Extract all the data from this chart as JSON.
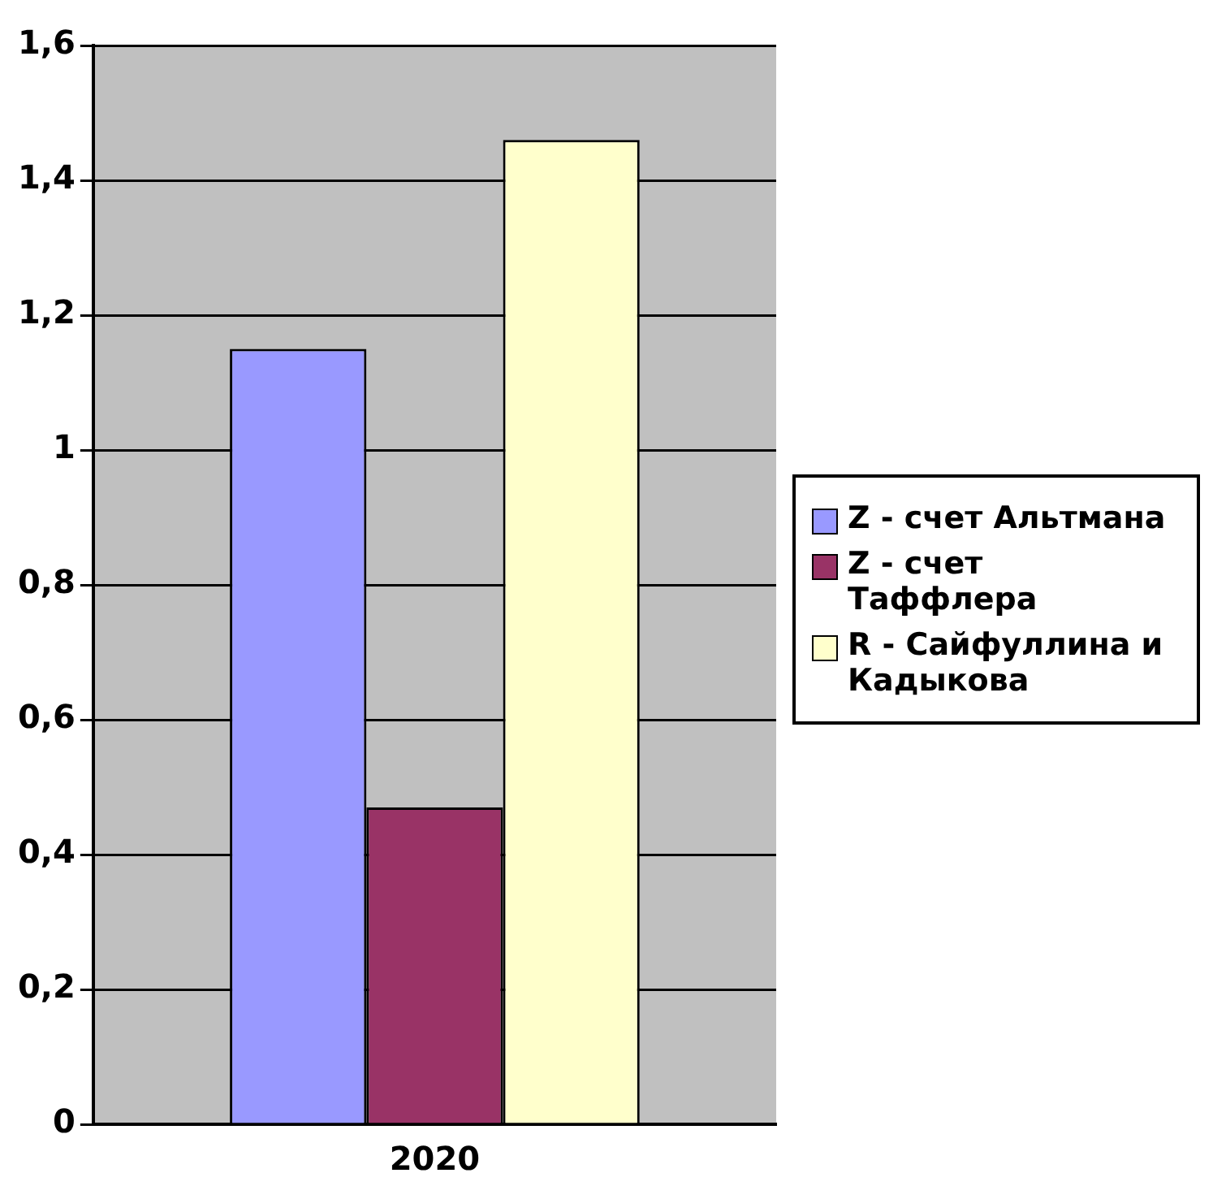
{
  "chart_data": {
    "type": "bar",
    "categories": [
      "2020"
    ],
    "series": [
      {
        "name": "Z - счет Альтмана",
        "color": "#9999ff",
        "values": [
          1.15
        ]
      },
      {
        "name": "Z - счет Таффлера",
        "color": "#993366",
        "values": [
          0.47
        ]
      },
      {
        "name": "R - Сайфуллина и Кадыкова",
        "color": "#ffffcc",
        "values": [
          1.46
        ]
      }
    ],
    "ylim": [
      0,
      1.6
    ],
    "yticks": [
      0,
      {
        "value": 0.2,
        "label": "0,2"
      },
      {
        "value": 0.4,
        "label": "0,4"
      },
      {
        "value": 0.6,
        "label": "0,6"
      },
      {
        "value": 0.8,
        "label": "0,8"
      },
      1,
      {
        "value": 1.2,
        "label": "1,2"
      },
      {
        "value": 1.4,
        "label": "1,4"
      },
      {
        "value": 1.6,
        "label": "1,6"
      }
    ],
    "grid": "y",
    "legend": "right"
  }
}
